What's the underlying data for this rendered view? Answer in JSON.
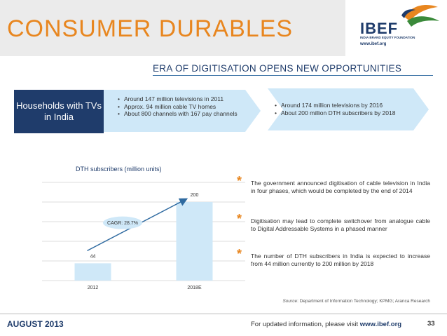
{
  "header": {
    "title": "CONSUMER DURABLES",
    "logo_text": "IBEF",
    "logo_subtext": "INDIA BRAND EQUITY FOUNDATION",
    "logo_url": "www.ibef.org",
    "brand_color": "#e8861f",
    "navy_color": "#1f3c6b"
  },
  "subtitle": "ERA OF DIGITISATION OPENS NEW OPPORTUNITIES",
  "flow": {
    "label": "Households with TVs in India",
    "current": [
      "Around 147 million televisions in 2011",
      "Approx. 94 million cable TV homes",
      "About 800 channels with 167 pay channels"
    ],
    "future": [
      "Around 174 million televisions by 2016",
      "About 200 million DTH subscribers by 2018"
    ]
  },
  "chart_data": {
    "type": "bar",
    "title": "DTH subscribers (million units)",
    "categories": [
      "2012",
      "2018E"
    ],
    "values": [
      44,
      200
    ],
    "data_labels": [
      "44",
      "200"
    ],
    "annotation": "CAGR: 28.7%",
    "ylim": [
      0,
      250
    ],
    "grid": true,
    "xlabel": "",
    "ylabel": ""
  },
  "points": [
    "The government announced digitisation of cable television in India in four phases, which would be completed by the end of 2014",
    "Digitisation may lead to complete switchover from analogue cable to Digital Addressable Systems in a phased manner",
    "The number of DTH subscribers in India is expected to increase from 44 million currently to 200 million by 2018"
  ],
  "source": {
    "label": "Source",
    "text": ": Department of Information Technology; KPMG; Aranca Research"
  },
  "footer": {
    "date": "AUGUST 2013",
    "text": "For updated information, please visit",
    "url": "www.ibef.org",
    "page": "33"
  }
}
